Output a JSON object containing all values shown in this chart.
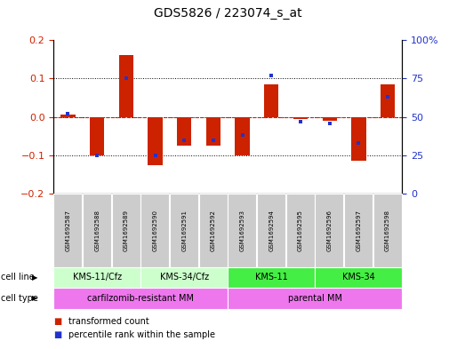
{
  "title": "GDS5826 / 223074_s_at",
  "samples": [
    "GSM1692587",
    "GSM1692588",
    "GSM1692589",
    "GSM1692590",
    "GSM1692591",
    "GSM1692592",
    "GSM1692593",
    "GSM1692594",
    "GSM1692595",
    "GSM1692596",
    "GSM1692597",
    "GSM1692598"
  ],
  "transformed_count": [
    0.005,
    -0.1,
    0.16,
    -0.125,
    -0.075,
    -0.075,
    -0.1,
    0.085,
    -0.005,
    -0.01,
    -0.115,
    0.085
  ],
  "percentile_rank": [
    52,
    25,
    75,
    25,
    35,
    35,
    38,
    77,
    47,
    46,
    33,
    63
  ],
  "ylim_left": [
    -0.2,
    0.2
  ],
  "ylim_right": [
    0,
    100
  ],
  "yticks_left": [
    -0.2,
    -0.1,
    0.0,
    0.1,
    0.2
  ],
  "yticks_right": [
    0,
    25,
    50,
    75,
    100
  ],
  "red_color": "#cc2200",
  "blue_color": "#2233cc",
  "bar_width": 0.5,
  "cell_line_groups": [
    {
      "label": "KMS-11/Cfz",
      "start": 0,
      "end": 3,
      "color": "#ccffcc"
    },
    {
      "label": "KMS-34/Cfz",
      "start": 3,
      "end": 6,
      "color": "#ccffcc"
    },
    {
      "label": "KMS-11",
      "start": 6,
      "end": 9,
      "color": "#44ee44"
    },
    {
      "label": "KMS-34",
      "start": 9,
      "end": 12,
      "color": "#44ee44"
    }
  ],
  "cell_type_groups": [
    {
      "label": "carfilzomib-resistant MM",
      "start": 0,
      "end": 6,
      "color": "#ee77ee"
    },
    {
      "label": "parental MM",
      "start": 6,
      "end": 12,
      "color": "#ee77ee"
    }
  ],
  "sample_box_color": "#cccccc",
  "sample_box_edge": "#ffffff",
  "legend_items": [
    {
      "color": "#cc2200",
      "label": "transformed count"
    },
    {
      "color": "#2233cc",
      "label": "percentile rank within the sample"
    }
  ]
}
